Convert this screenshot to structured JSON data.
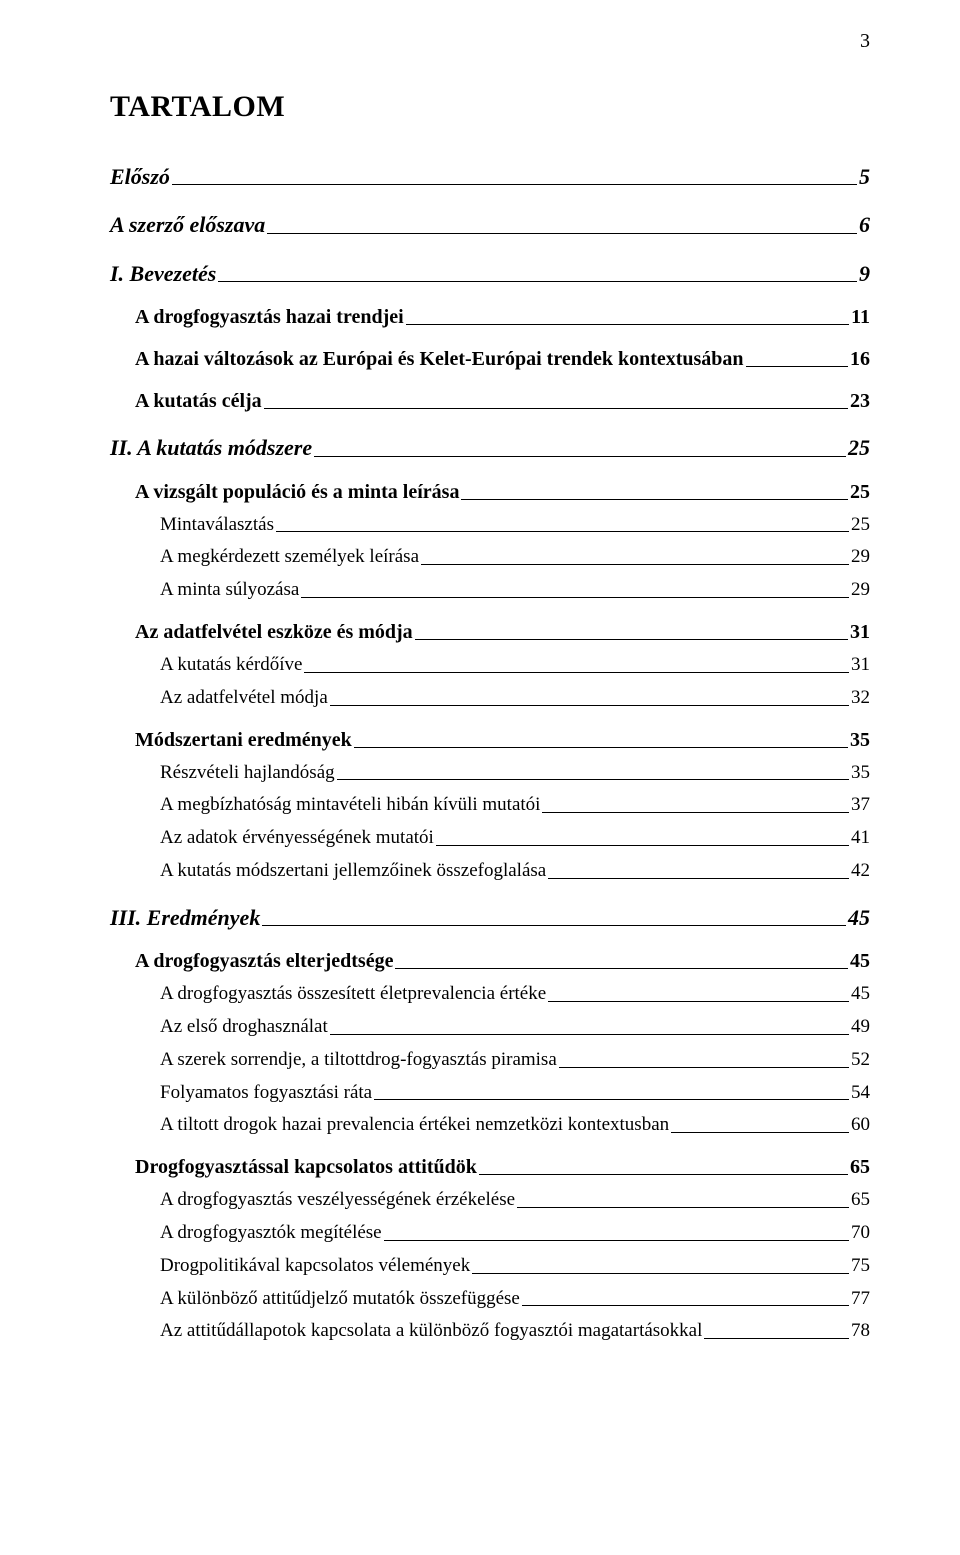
{
  "page_number": "3",
  "title": "TARTALOM",
  "toc": [
    {
      "level": 1,
      "label": "Előszó",
      "page": "5"
    },
    {
      "level": 1,
      "label": "A szerző előszava",
      "page": "6"
    },
    {
      "level": 1,
      "label": "I. Bevezetés",
      "page": "9"
    },
    {
      "level": 2,
      "label": "A drogfogyasztás hazai trendjei",
      "page": "11"
    },
    {
      "level": 2,
      "label": "A hazai változások az Európai és Kelet-Európai trendek kontextusában",
      "page": "16"
    },
    {
      "level": 2,
      "label": "A kutatás célja",
      "page": "23"
    },
    {
      "level": 1,
      "label": "II. A kutatás módszere",
      "page": "25"
    },
    {
      "level": 2,
      "label": "A vizsgált populáció és a minta leírása",
      "page": "25"
    },
    {
      "level": 3,
      "label": "Mintaválasztás",
      "page": "25"
    },
    {
      "level": 3,
      "label": "A megkérdezett személyek leírása",
      "page": "29"
    },
    {
      "level": 3,
      "label": "A minta súlyozása",
      "page": "29"
    },
    {
      "level": 2,
      "label": "Az adatfelvétel eszköze és módja",
      "page": "31"
    },
    {
      "level": 3,
      "label": "A kutatás kérdőíve",
      "page": "31"
    },
    {
      "level": 3,
      "label": "Az adatfelvétel módja",
      "page": "32"
    },
    {
      "level": 2,
      "label": "Módszertani eredmények",
      "page": "35"
    },
    {
      "level": 3,
      "label": "Részvételi hajlandóság",
      "page": "35"
    },
    {
      "level": 3,
      "label": "A megbízhatóság mintavételi hibán kívüli mutatói",
      "page": "37"
    },
    {
      "level": 3,
      "label": "Az adatok érvényességének mutatói",
      "page": "41"
    },
    {
      "level": 3,
      "label": "A kutatás módszertani jellemzőinek összefoglalása",
      "page": "42"
    },
    {
      "level": 1,
      "label": "III. Eredmények",
      "page": "45"
    },
    {
      "level": 2,
      "label": "A drogfogyasztás elterjedtsége",
      "page": "45"
    },
    {
      "level": 3,
      "label": "A drogfogyasztás összesített életprevalencia értéke",
      "page": "45"
    },
    {
      "level": 3,
      "label": "Az első droghasználat",
      "page": "49"
    },
    {
      "level": 3,
      "label": "A szerek sorrendje, a tiltottdrog-fogyasztás piramisa",
      "page": "52"
    },
    {
      "level": 3,
      "label": "Folyamatos fogyasztási ráta",
      "page": "54"
    },
    {
      "level": 3,
      "label": "A tiltott drogok hazai prevalencia értékei nemzetközi kontextusban",
      "page": "60"
    },
    {
      "level": 2,
      "label": "Drogfogyasztással kapcsolatos attitűdök",
      "page": "65"
    },
    {
      "level": 3,
      "label": "A drogfogyasztás veszélyességének érzékelése",
      "page": "65"
    },
    {
      "level": 3,
      "label": "A drogfogyasztók megítélése",
      "page": "70"
    },
    {
      "level": 3,
      "label": "Drogpolitikával kapcsolatos vélemények",
      "page": "75"
    },
    {
      "level": 3,
      "label": "A különböző attitűdjelző mutatók összefüggése",
      "page": "77"
    },
    {
      "level": 3,
      "label": "Az attitűdállapotok kapcsolata a különböző fogyasztói magatartásokkal",
      "page": "78"
    }
  ]
}
